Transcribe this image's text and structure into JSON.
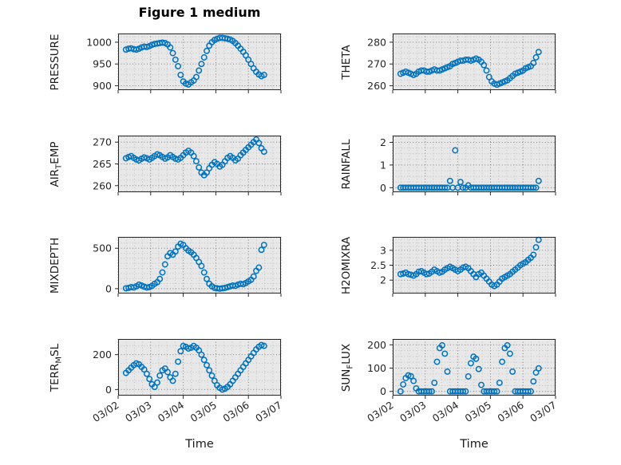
{
  "figure": {
    "title": "Figure 1 medium"
  },
  "style": {
    "marker_color": "#0072BD",
    "plot_bg": "#e8e8e8",
    "grid_major": "#757575",
    "grid_minor": "#bdbdbd",
    "axis_color": "#262626",
    "text_color": "#262626"
  },
  "x_axis": {
    "label": "Time",
    "range": [
      2,
      7
    ],
    "ticks": [
      2,
      3,
      4,
      5,
      6,
      7
    ],
    "tick_labels": [
      "03/02",
      "03/03",
      "03/04",
      "03/05",
      "03/06",
      "03/07"
    ],
    "minor_step": 0.25
  },
  "time_days": [
    2.24,
    2.32,
    2.4,
    2.48,
    2.56,
    2.64,
    2.72,
    2.8,
    2.88,
    2.96,
    3.04,
    3.12,
    3.2,
    3.28,
    3.36,
    3.44,
    3.52,
    3.6,
    3.68,
    3.76,
    3.84,
    3.92,
    4.0,
    4.08,
    4.16,
    4.24,
    4.32,
    4.4,
    4.48,
    4.56,
    4.64,
    4.72,
    4.8,
    4.88,
    4.96,
    5.04,
    5.12,
    5.2,
    5.28,
    5.36,
    5.44,
    5.52,
    5.6,
    5.68,
    5.76,
    5.84,
    5.92,
    6.0,
    6.08,
    6.16,
    6.24,
    6.32,
    6.4,
    6.48
  ],
  "chart_data": [
    {
      "type": "scatter",
      "name": "PRESSURE",
      "ylabel": {
        "pre": "PRESSURE",
        "sub": "",
        "post": ""
      },
      "ylim": [
        890,
        1020
      ],
      "yticks": [
        900,
        950,
        1000
      ],
      "ytick_labels": [
        "900",
        "950",
        "1000"
      ],
      "yminor": 12.5,
      "y": [
        983,
        985,
        986,
        984,
        983,
        985,
        988,
        990,
        989,
        991,
        994,
        996,
        997,
        998,
        999,
        998,
        995,
        988,
        975,
        960,
        945,
        925,
        910,
        905,
        903,
        908,
        912,
        920,
        935,
        950,
        965,
        980,
        992,
        1000,
        1005,
        1008,
        1010,
        1010,
        1009,
        1008,
        1006,
        1003,
        998,
        992,
        985,
        978,
        970,
        960,
        950,
        940,
        932,
        926,
        922,
        925
      ]
    },
    {
      "type": "scatter",
      "name": "THETA",
      "ylabel": {
        "pre": "THETA",
        "sub": "",
        "post": ""
      },
      "ylim": [
        258,
        284
      ],
      "yticks": [
        260,
        270,
        280
      ],
      "ytick_labels": [
        "260",
        "270",
        "280"
      ],
      "yminor": 2.5,
      "y": [
        265.5,
        266,
        266.5,
        266,
        265.5,
        265,
        265.5,
        266.5,
        267,
        267,
        266.5,
        266.5,
        267,
        267.5,
        267,
        267,
        267.5,
        268,
        268.5,
        269,
        270,
        270.5,
        271,
        271.5,
        271.5,
        272,
        272,
        271.5,
        272,
        272.5,
        272,
        271,
        269.5,
        267,
        264,
        262,
        261,
        260.5,
        261,
        261.5,
        262,
        262.5,
        263.5,
        264.5,
        265.5,
        266,
        266.5,
        267,
        268,
        268.5,
        269,
        270.5,
        273,
        275.5
      ]
    },
    {
      "type": "scatter",
      "name": "AIR_TEMP",
      "ylabel": {
        "pre": "AIR",
        "sub": "T",
        "post": "EMP"
      },
      "ylim": [
        258.5,
        271.5
      ],
      "yticks": [
        260,
        265,
        270
      ],
      "ytick_labels": [
        "260",
        "265",
        "270"
      ],
      "yminor": 1.25,
      "y": [
        266.3,
        266.6,
        266.8,
        266.4,
        266,
        265.8,
        266.2,
        266.5,
        266.3,
        266,
        266.4,
        266.8,
        267.2,
        267,
        266.6,
        266.2,
        266.5,
        267,
        266.6,
        266.2,
        266,
        266.4,
        267,
        267.6,
        268,
        267.6,
        266.8,
        265.6,
        264.2,
        263,
        262.4,
        263,
        264,
        264.8,
        265.4,
        265,
        264.4,
        264.8,
        265.6,
        266.4,
        266.8,
        266.4,
        265.8,
        266.2,
        267,
        267.6,
        268.2,
        268.8,
        269.4,
        270,
        270.6,
        269.8,
        268.6,
        267.8
      ]
    },
    {
      "type": "scatter",
      "name": "RAINFALL",
      "ylabel": {
        "pre": "RAINFALL",
        "sub": "",
        "post": ""
      },
      "ylim": [
        -0.2,
        2.3
      ],
      "yticks": [
        0,
        1,
        2
      ],
      "ytick_labels": [
        "0",
        "1",
        "2"
      ],
      "yminor": 0.25,
      "y": [
        0,
        0,
        0,
        0,
        0,
        0,
        0,
        0,
        0,
        0,
        0,
        0,
        0,
        0,
        0,
        0,
        0,
        0,
        0,
        0.3,
        0,
        1.65,
        0,
        0.25,
        0,
        0,
        0.1,
        0,
        0,
        0,
        0,
        0,
        0,
        0,
        0,
        0,
        0,
        0,
        0,
        0,
        0,
        0,
        0,
        0,
        0,
        0,
        0,
        0,
        0,
        0,
        0,
        0,
        0,
        0.3
      ]
    },
    {
      "type": "scatter",
      "name": "MIXDEPTH",
      "ylabel": {
        "pre": "MIXDEPTH",
        "sub": "",
        "post": ""
      },
      "ylim": [
        -60,
        640
      ],
      "yticks": [
        0,
        500
      ],
      "ytick_labels": [
        "0",
        "500"
      ],
      "yminor": 62.5,
      "y": [
        5,
        10,
        20,
        15,
        30,
        50,
        40,
        25,
        15,
        20,
        35,
        60,
        80,
        120,
        200,
        300,
        400,
        440,
        420,
        460,
        520,
        555,
        540,
        500,
        470,
        450,
        420,
        380,
        330,
        280,
        200,
        120,
        60,
        30,
        10,
        5,
        0,
        5,
        10,
        20,
        30,
        40,
        35,
        50,
        60,
        55,
        70,
        90,
        110,
        150,
        220,
        260,
        480,
        540
      ]
    },
    {
      "type": "scatter",
      "name": "H2OMIXRA",
      "ylabel": {
        "pre": "H2OMIXRA",
        "sub": "",
        "post": ""
      },
      "ylim": [
        1.55,
        3.45
      ],
      "yticks": [
        2,
        2.5,
        3
      ],
      "ytick_labels": [
        "2",
        "2.5",
        "3"
      ],
      "yminor": 0.125,
      "y": [
        2.2,
        2.22,
        2.25,
        2.2,
        2.18,
        2.15,
        2.2,
        2.28,
        2.3,
        2.25,
        2.2,
        2.22,
        2.28,
        2.35,
        2.3,
        2.25,
        2.28,
        2.35,
        2.4,
        2.45,
        2.4,
        2.35,
        2.3,
        2.35,
        2.42,
        2.45,
        2.4,
        2.3,
        2.2,
        2.1,
        2.2,
        2.25,
        2.15,
        2.05,
        1.95,
        1.85,
        1.8,
        1.85,
        1.95,
        2.05,
        2.1,
        2.15,
        2.2,
        2.28,
        2.35,
        2.42,
        2.5,
        2.55,
        2.6,
        2.68,
        2.75,
        2.85,
        3.1,
        3.35
      ]
    },
    {
      "type": "scatter",
      "name": "TERR_MSL",
      "ylabel": {
        "pre": "TERR",
        "sub": "M",
        "post": "SL"
      },
      "ylim": [
        -35,
        290
      ],
      "yticks": [
        0,
        200
      ],
      "ytick_labels": [
        "0",
        "200"
      ],
      "yminor": 50,
      "y": [
        95,
        110,
        125,
        140,
        150,
        145,
        130,
        115,
        90,
        60,
        30,
        15,
        40,
        80,
        110,
        120,
        100,
        70,
        50,
        90,
        160,
        220,
        250,
        245,
        235,
        240,
        250,
        240,
        225,
        200,
        170,
        140,
        110,
        80,
        50,
        25,
        10,
        0,
        5,
        15,
        30,
        50,
        70,
        90,
        110,
        130,
        150,
        170,
        190,
        210,
        230,
        245,
        255,
        250
      ]
    },
    {
      "type": "scatter",
      "name": "SUN_FLUX",
      "ylabel": {
        "pre": "SUN",
        "sub": "F",
        "post": "LUX"
      },
      "ylim": [
        -18,
        225
      ],
      "yticks": [
        0,
        100,
        200
      ],
      "ytick_labels": [
        "0",
        "100",
        "200"
      ],
      "yminor": 25,
      "y": [
        0,
        30,
        57,
        69,
        65,
        45,
        13,
        0,
        0,
        0,
        0,
        0,
        0,
        37,
        127,
        186,
        198,
        162,
        85,
        0,
        0,
        0,
        0,
        0,
        0,
        0,
        64,
        121,
        149,
        140,
        96,
        28,
        0,
        0,
        0,
        0,
        0,
        0,
        37,
        127,
        186,
        198,
        162,
        85,
        0,
        0,
        0,
        0,
        0,
        0,
        0,
        43,
        81,
        99
      ]
    }
  ]
}
